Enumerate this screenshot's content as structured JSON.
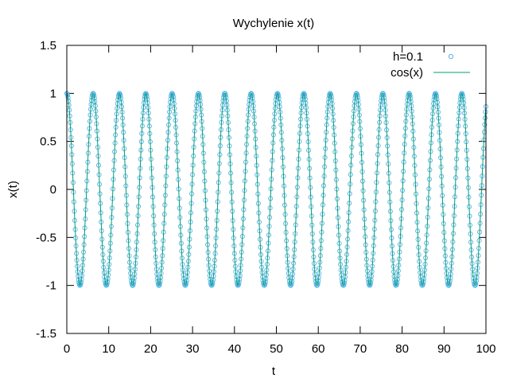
{
  "chart_data": {
    "type": "scatter",
    "title": "Wychylenie x(t)",
    "xlabel": "t",
    "ylabel": "x(t)",
    "xlim": [
      0,
      100
    ],
    "ylim": [
      -1.5,
      1.5
    ],
    "xticks": [
      "0",
      "10",
      "20",
      "30",
      "40",
      "50",
      "60",
      "70",
      "80",
      "90",
      "100"
    ],
    "yticks": [
      "1.5",
      "1",
      "0.5",
      "0",
      "-0.5",
      "-1",
      "-1.5"
    ],
    "grid": false,
    "legend_position": "top-right",
    "series": [
      {
        "name": "h=0.1",
        "kind": "points",
        "marker": "open-circle",
        "color": "#56b4e9",
        "function": "cos(t)",
        "step": 0.1,
        "x_range": [
          0,
          100
        ]
      },
      {
        "name": "cos(x)",
        "kind": "line",
        "color": "#009e73",
        "function": "cos(t)",
        "x_range": [
          0,
          100
        ]
      }
    ]
  }
}
